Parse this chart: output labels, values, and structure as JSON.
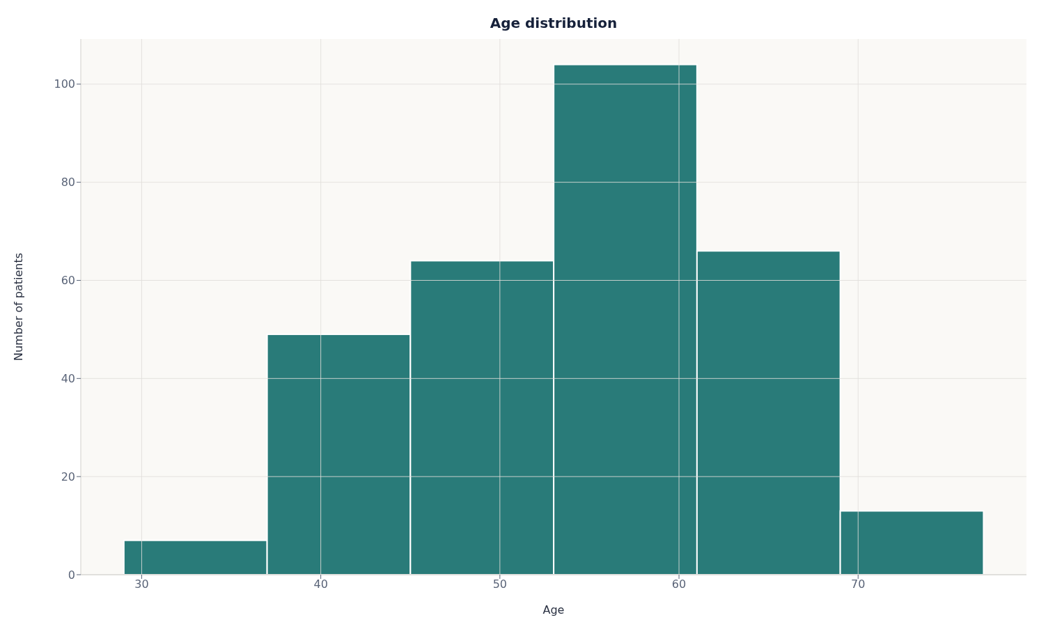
{
  "chart_data": {
    "type": "histogram",
    "title": "Age distribution",
    "xlabel": "Age",
    "ylabel": "Number of patients",
    "bins": [
      29,
      37,
      45,
      53,
      61,
      69,
      77
    ],
    "values": [
      7,
      49,
      64,
      104,
      66,
      13
    ],
    "color": "#297b79",
    "xlim": [
      26.6,
      79.4
    ],
    "xticks": [
      30,
      40,
      50,
      60,
      70
    ],
    "ylim": [
      0,
      109.2
    ],
    "yticks": [
      0,
      20,
      40,
      60,
      80,
      100
    ],
    "grid": true
  }
}
